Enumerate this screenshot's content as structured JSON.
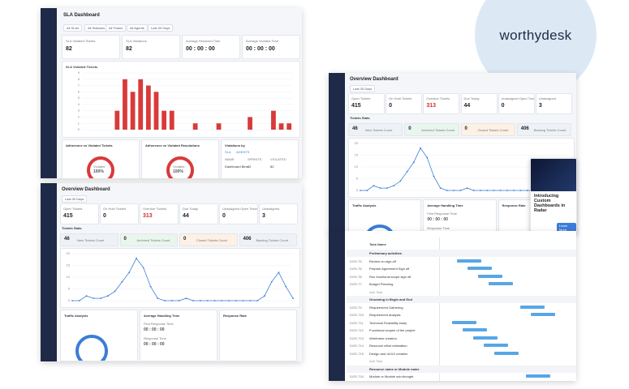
{
  "brand": "worthydesk",
  "sla": {
    "title": "SLA Dashboard",
    "filters": [
      "All SLAs",
      "All Statuses",
      "All Teams",
      "All Agents",
      "Last 30 Days"
    ],
    "kpis": [
      {
        "label": "SLA Violated Tickets",
        "value": "82"
      },
      {
        "label": "SLA Violations",
        "value": "82"
      },
      {
        "label": "Average Resolved Time",
        "value": "00 : 00 : 00"
      },
      {
        "label": "Average Violated Time",
        "value": "00 : 00 : 00"
      }
    ],
    "chart": {
      "title": "SLA Violated Tickets",
      "color": "#d93a3a",
      "values": [
        0,
        0,
        0,
        0,
        3,
        8,
        6,
        8,
        7,
        6,
        3,
        3,
        0,
        0,
        1,
        0,
        0,
        1,
        0,
        0,
        0,
        2,
        0,
        0,
        3,
        1,
        1
      ],
      "ylim": [
        0,
        9
      ],
      "yticks": [
        0,
        1,
        2,
        3,
        4,
        5,
        6,
        7,
        8,
        9
      ]
    },
    "cards": [
      "Adherence vs Violated Tickets",
      "Adherence vs Violated Resolutions",
      "Violations by"
    ],
    "violated": {
      "label": "Violated",
      "value": "100%"
    },
    "tabs": [
      "SLA",
      "AGENTS"
    ],
    "columns": [
      "NAME",
      "SPRINTS",
      "VIOLATED"
    ],
    "row": [
      "Dashboard Bins",
      "82",
      "82"
    ]
  },
  "overview": {
    "title": "Overview Dashboard",
    "filter": "Last 30 Days",
    "kpis": [
      {
        "label": "Open Tickets",
        "value": "415"
      },
      {
        "label": "On Hold Tickets",
        "value": "0"
      },
      {
        "label": "Overdue Tickets",
        "value": "313",
        "color": "#d32f2f"
      },
      {
        "label": "Due Today",
        "value": "44"
      },
      {
        "label": "Unassigned Open Tickets",
        "value": "0"
      },
      {
        "label": "Unassigned",
        "value": "3"
      }
    ],
    "stats_title": "Tickets Stats",
    "stats": [
      {
        "value": "46",
        "label": "New Tickets Count",
        "color": "#eef2f7"
      },
      {
        "value": "0",
        "label": "Archived Tickets Count",
        "color": "#e9f6ee"
      },
      {
        "value": "0",
        "label": "Closed Tickets Count",
        "color": "#fdf0e4"
      },
      {
        "value": "406",
        "label": "Backlog Tickets Count",
        "color": "#eef2f7"
      }
    ],
    "chart": {
      "color": "#3b7dd8",
      "values": [
        0,
        0,
        2,
        1,
        1,
        2,
        4,
        8,
        12,
        18,
        14,
        6,
        1,
        0,
        0,
        0,
        1,
        0,
        0,
        0,
        0,
        0,
        0,
        0,
        0,
        0,
        0,
        2,
        8,
        12,
        6,
        1
      ],
      "ylim": [
        0,
        20
      ],
      "yticks": [
        0,
        5,
        10,
        15,
        20
      ]
    },
    "cards": [
      "Traffic Analysis",
      "Average Handling Time",
      "Response Rate"
    ],
    "times": [
      {
        "label": "First Response Time",
        "value": "00 : 00 : 00"
      },
      {
        "label": "Response Time",
        "value": "00 : 00 : 00"
      }
    ]
  },
  "promo": {
    "title": "Introducing Custom Dashboards in Radar",
    "button": "Learn More"
  },
  "gantt": {
    "header": "Task Name",
    "add_task": "Add Task",
    "groups": [
      {
        "name": "Preliminary activities",
        "tasks": [
          {
            "id": "DOS-T5",
            "name": "Review on sign-off"
          },
          {
            "id": "DOS-T6",
            "name": "Prepare Agreement Sign off"
          },
          {
            "id": "DOS-T8",
            "name": "Run functional scope sign off"
          },
          {
            "id": "DOS-T7",
            "name": "Budget Planning"
          }
        ]
      },
      {
        "name": "Grooming in Begin and End",
        "tasks": [
          {
            "id": "DOS-T9",
            "name": "Requirement Gathering"
          },
          {
            "id": "DOS-T10",
            "name": "Requirement analysis"
          },
          {
            "id": "DOS-T11",
            "name": "Technical Feasibility study"
          },
          {
            "id": "DOS-T12",
            "name": "Functional scopes of the project"
          },
          {
            "id": "DOS-T13",
            "name": "Wireframe creation"
          },
          {
            "id": "DOS-T14",
            "name": "Resource effort estimation"
          },
          {
            "id": "DOS-T15",
            "name": "Design and UI/UX creation"
          }
        ]
      },
      {
        "name": "Resource name or Module name",
        "tasks": [
          {
            "id": "DOS-T16",
            "name": "Module or Module sub-thought"
          }
        ]
      }
    ]
  }
}
